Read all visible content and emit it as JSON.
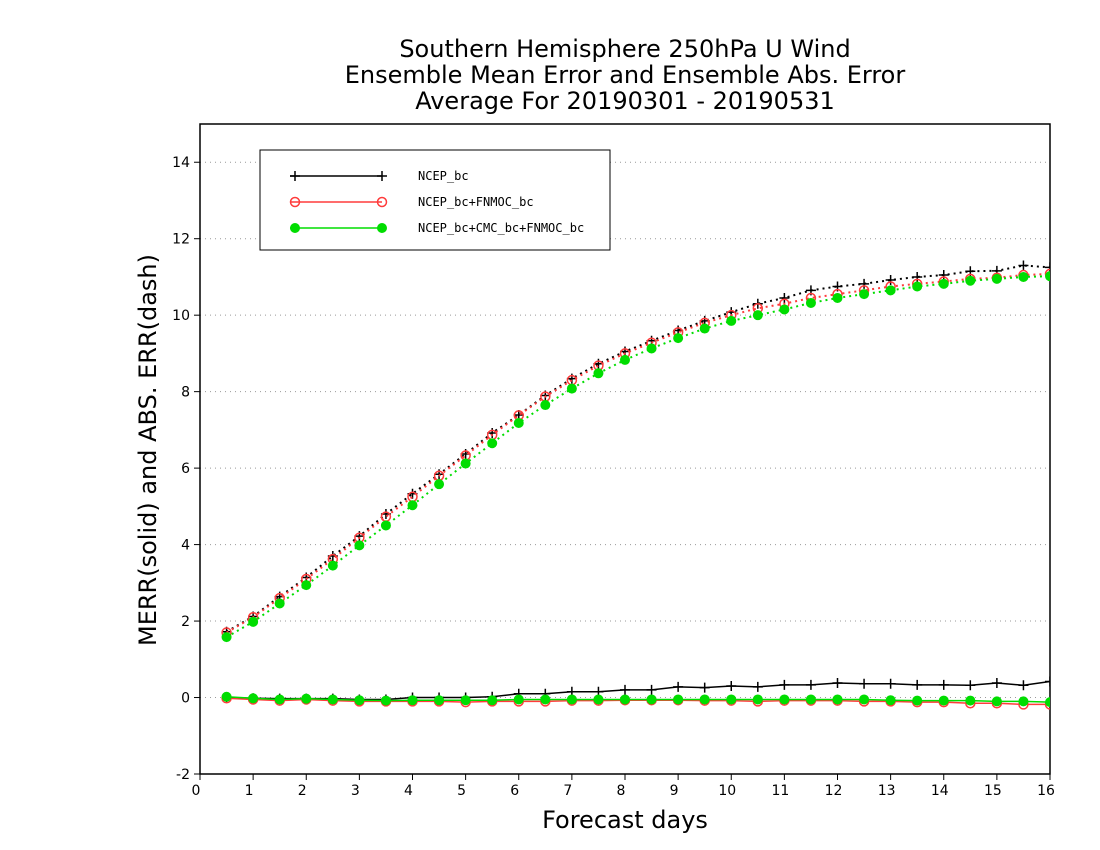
{
  "chart_data": {
    "type": "line",
    "title": [
      "Southern Hemisphere 250hPa U Wind",
      "Ensemble Mean Error and Ensemble Abs. Error",
      "Average For 20190301 - 20190531"
    ],
    "xlabel": "Forecast days",
    "ylabel": "MERR(solid) and ABS. ERR(dash)",
    "xlim": [
      0,
      16
    ],
    "ylim": [
      -2,
      15
    ],
    "xticks": [
      "0",
      "1",
      "2",
      "3",
      "4",
      "5",
      "6",
      "7",
      "8",
      "9",
      "10",
      "11",
      "12",
      "13",
      "14",
      "15",
      "16"
    ],
    "yticks": [
      "-2",
      "0",
      "2",
      "4",
      "6",
      "8",
      "10",
      "12",
      "14"
    ],
    "grid": "horizontal dotted",
    "legend_position": "top-left",
    "x": [
      0.5,
      1,
      1.5,
      2,
      2.5,
      3,
      3.5,
      4,
      4.5,
      5,
      5.5,
      6,
      6.5,
      7,
      7.5,
      8,
      8.5,
      9,
      9.5,
      10,
      10.5,
      11,
      11.5,
      12,
      12.5,
      13,
      13.5,
      14,
      14.5,
      15,
      15.5,
      16
    ],
    "series": [
      {
        "name": "NCEP_bc",
        "color": "#000000",
        "marker": "plus",
        "merr": [
          0.0,
          -0.02,
          -0.03,
          -0.03,
          -0.03,
          -0.05,
          -0.05,
          0.0,
          0.0,
          0.0,
          0.02,
          0.1,
          0.1,
          0.15,
          0.15,
          0.2,
          0.2,
          0.28,
          0.26,
          0.3,
          0.28,
          0.33,
          0.33,
          0.38,
          0.36,
          0.36,
          0.33,
          0.33,
          0.32,
          0.38,
          0.32,
          0.42
        ],
        "abs_err": [
          1.72,
          2.12,
          2.64,
          3.14,
          3.7,
          4.22,
          4.8,
          5.33,
          5.84,
          6.37,
          6.92,
          7.39,
          7.9,
          8.34,
          8.73,
          9.05,
          9.33,
          9.6,
          9.85,
          10.08,
          10.3,
          10.45,
          10.65,
          10.75,
          10.82,
          10.92,
          11.0,
          11.05,
          11.15,
          11.16,
          11.3,
          11.25
        ]
      },
      {
        "name": "NCEP_bc+FNMOC_bc",
        "color": "#ff3b3b",
        "marker": "open-circle",
        "merr": [
          -0.02,
          -0.05,
          -0.08,
          -0.05,
          -0.08,
          -0.1,
          -0.1,
          -0.1,
          -0.1,
          -0.12,
          -0.1,
          -0.1,
          -0.1,
          -0.08,
          -0.08,
          -0.07,
          -0.07,
          -0.07,
          -0.08,
          -0.08,
          -0.1,
          -0.08,
          -0.08,
          -0.08,
          -0.1,
          -0.1,
          -0.12,
          -0.12,
          -0.15,
          -0.15,
          -0.18,
          -0.18
        ],
        "abs_err": [
          1.7,
          2.1,
          2.6,
          3.1,
          3.62,
          4.18,
          4.73,
          5.25,
          5.8,
          6.33,
          6.87,
          7.38,
          7.87,
          8.3,
          8.68,
          9.0,
          9.28,
          9.55,
          9.8,
          10.0,
          10.18,
          10.3,
          10.45,
          10.55,
          10.65,
          10.75,
          10.82,
          10.88,
          10.95,
          10.98,
          11.05,
          11.08
        ]
      },
      {
        "name": "NCEP_bc+CMC_bc+FNMOC_bc",
        "color": "#00dd00",
        "marker": "filled-circle",
        "merr": [
          0.02,
          -0.02,
          -0.05,
          -0.03,
          -0.05,
          -0.07,
          -0.08,
          -0.07,
          -0.07,
          -0.07,
          -0.07,
          -0.05,
          -0.05,
          -0.05,
          -0.05,
          -0.05,
          -0.05,
          -0.05,
          -0.05,
          -0.05,
          -0.05,
          -0.05,
          -0.05,
          -0.05,
          -0.05,
          -0.07,
          -0.08,
          -0.08,
          -0.08,
          -0.1,
          -0.1,
          -0.12
        ],
        "abs_err": [
          1.58,
          1.98,
          2.46,
          2.94,
          3.45,
          3.98,
          4.5,
          5.03,
          5.58,
          6.12,
          6.65,
          7.18,
          7.65,
          8.08,
          8.48,
          8.83,
          9.13,
          9.4,
          9.65,
          9.85,
          10.0,
          10.15,
          10.32,
          10.45,
          10.55,
          10.65,
          10.75,
          10.82,
          10.9,
          10.95,
          11.0,
          11.02
        ]
      }
    ]
  }
}
